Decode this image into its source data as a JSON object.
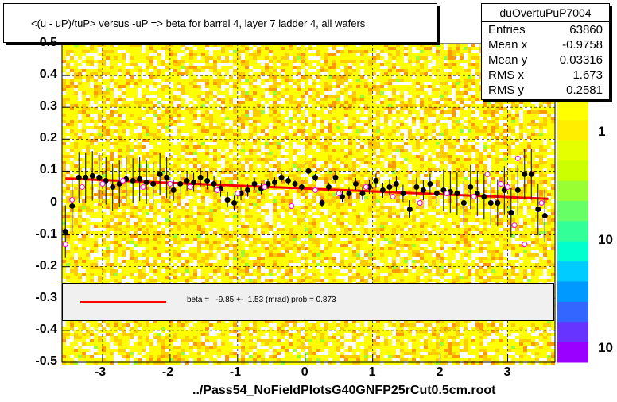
{
  "title": "<(u - uP)/tuP> versus  -uP => beta for barrel 4, layer 7 ladder 4, all wafers",
  "stats": {
    "name": "duOvertuPuP7004",
    "rows": [
      {
        "label": "Entries",
        "value": "63860"
      },
      {
        "label": "Mean x",
        "value": "-0.9758"
      },
      {
        "label": "Mean y",
        "value": "0.03316"
      },
      {
        "label": "RMS x",
        "value": "1.673"
      },
      {
        "label": "RMS y",
        "value": "0.2581"
      }
    ]
  },
  "fit_legend": "beta =   -9.85 +-  1.53 (mrad) prob = 0.873",
  "footer": "../Pass54_NoFieldPlotsG40GNFP25rCut0.5cm.root",
  "colors": {
    "fit_line": "#ff0000",
    "profile_points": "#000000",
    "open_points": "#ff00ff",
    "heatmap_low": "#ffff00",
    "heatmap_high": "#ff8000"
  },
  "chart_data": {
    "type": "heatmap",
    "title": "<(u - uP)/tuP> versus  -uP => beta for barrel 4, layer 7 ladder 4, all wafers",
    "xlabel": "",
    "ylabel": "",
    "xlim": [
      -3.6,
      3.7
    ],
    "ylim": [
      -0.5,
      0.5
    ],
    "x_ticks": [
      "-3",
      "-2",
      "-1",
      "0",
      "1",
      "2",
      "3"
    ],
    "y_ticks": [
      "-0.5",
      "-0.4",
      "-0.3",
      "-0.2",
      "-0.1",
      "0",
      "0.1",
      "0.2",
      "0.3",
      "0.4",
      "0.5"
    ],
    "z_ticks": [
      "1",
      "10",
      "10"
    ],
    "grid": true,
    "fit": {
      "x": [
        -3.55,
        3.6
      ],
      "y": [
        0.077,
        0.013
      ]
    },
    "profile": {
      "x": [
        -3.55,
        -3.45,
        -3.35,
        -3.25,
        -3.15,
        -3.05,
        -2.95,
        -2.85,
        -2.75,
        -2.65,
        -2.55,
        -2.45,
        -2.35,
        -2.25,
        -2.15,
        -2.05,
        -1.95,
        -1.85,
        -1.75,
        -1.65,
        -1.55,
        -1.45,
        -1.35,
        -1.25,
        -1.15,
        -1.05,
        -0.95,
        -0.85,
        -0.75,
        -0.65,
        -0.55,
        -0.45,
        -0.35,
        -0.25,
        -0.15,
        -0.05,
        0.05,
        0.15,
        0.25,
        0.35,
        0.45,
        0.55,
        0.65,
        0.75,
        0.85,
        0.95,
        1.05,
        1.15,
        1.25,
        1.35,
        1.45,
        1.55,
        1.65,
        1.75,
        1.85,
        1.95,
        2.05,
        2.15,
        2.25,
        2.35,
        2.45,
        2.55,
        2.65,
        2.75,
        2.85,
        2.95,
        3.05,
        3.15,
        3.25,
        3.35,
        3.45,
        3.55
      ],
      "y": [
        -0.09,
        -0.01,
        0.08,
        0.08,
        0.085,
        0.08,
        0.07,
        0.05,
        0.06,
        0.075,
        0.07,
        0.075,
        0.065,
        0.06,
        0.09,
        0.08,
        0.04,
        0.06,
        0.07,
        0.065,
        0.08,
        0.07,
        0.06,
        0.045,
        0.01,
        0.0,
        0.03,
        0.04,
        0.06,
        0.045,
        0.06,
        0.065,
        0.08,
        0.07,
        0.06,
        0.05,
        0.1,
        0.08,
        0.0,
        0.05,
        0.08,
        0.02,
        0.03,
        0.06,
        0.03,
        0.05,
        0.07,
        0.04,
        0.05,
        0.06,
        0.03,
        -0.02,
        0.05,
        0.04,
        0.06,
        0.03,
        0.04,
        0.035,
        0.03,
        0.0,
        0.05,
        0.03,
        0.02,
        0.0,
        0.0,
        0.04,
        -0.03,
        0.04,
        0.09,
        0.09,
        -0.02,
        -0.04
      ]
    },
    "open_points": {
      "x": [
        -3.55,
        -3.45,
        -3.3,
        -3.0,
        -2.7,
        -2.4,
        -2.0,
        -1.7,
        -1.3,
        -1.0,
        -0.6,
        -0.2,
        0.15,
        0.5,
        0.9,
        1.3,
        1.7,
        2.1,
        2.5,
        2.7,
        2.9,
        3.0,
        3.1,
        3.15,
        3.25,
        3.5
      ],
      "y": [
        -0.13,
        0.01,
        0.05,
        0.06,
        0.07,
        0.05,
        0.06,
        0.05,
        0.04,
        0.03,
        0.05,
        -0.01,
        0.04,
        0.03,
        0.05,
        0.02,
        0.0,
        0.03,
        0.02,
        0.09,
        0.06,
        0.05,
        -0.07,
        0.14,
        -0.13,
        0.0
      ]
    }
  }
}
